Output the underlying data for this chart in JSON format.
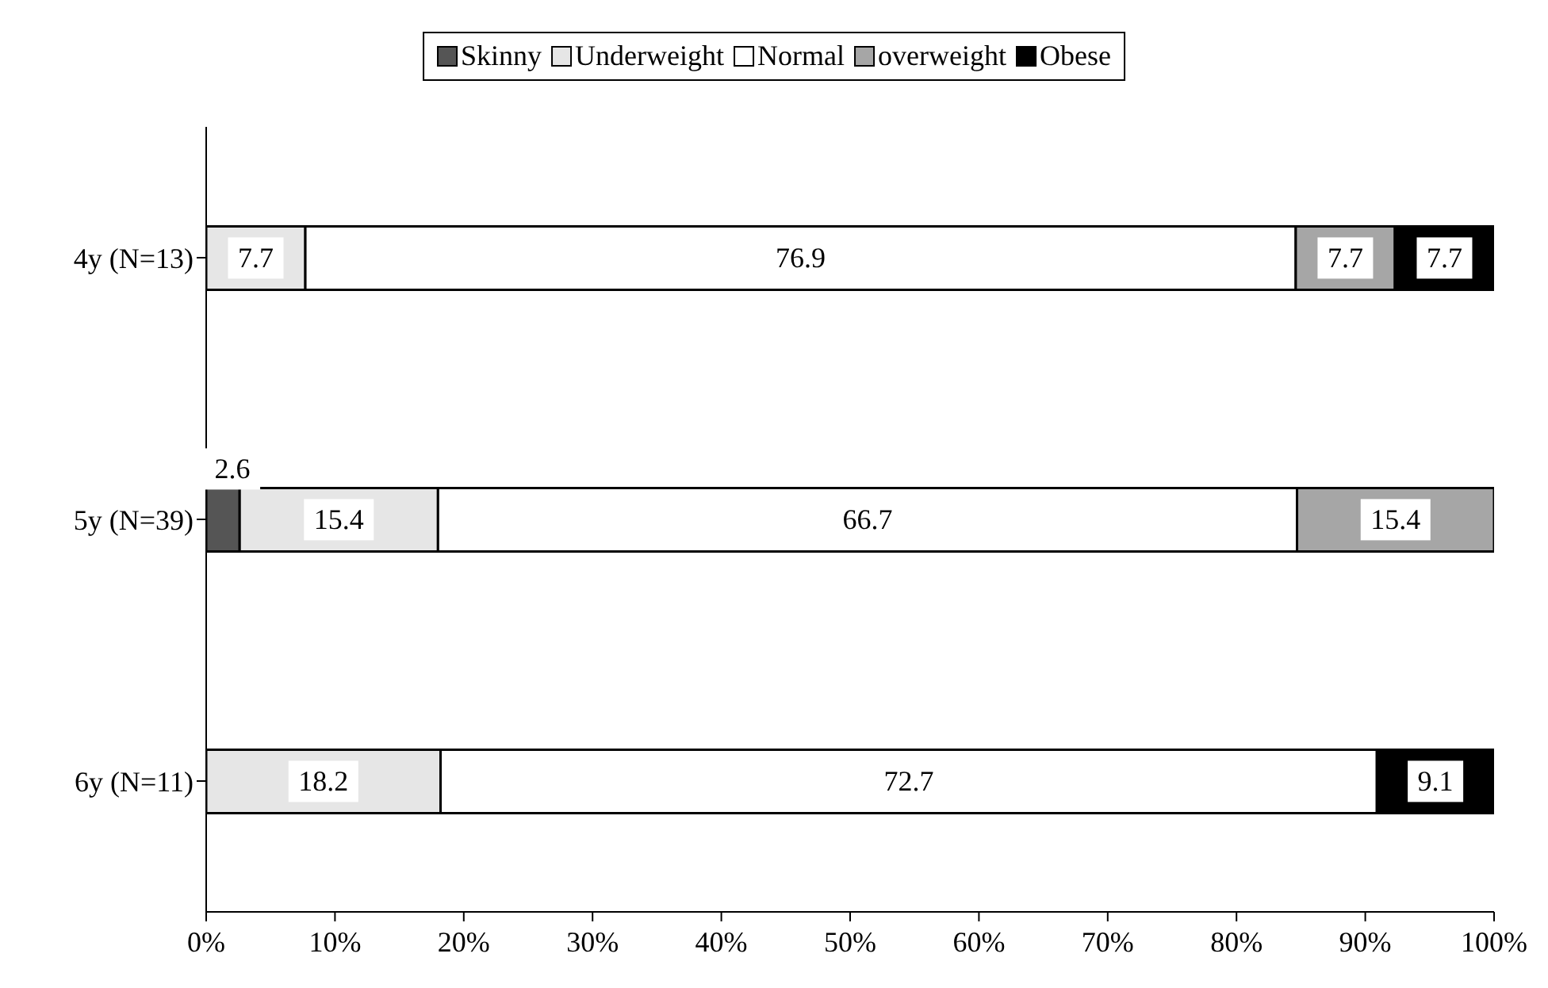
{
  "chart_data": {
    "type": "bar",
    "orientation": "horizontal",
    "stacked": true,
    "categories": [
      "4y (N=13)",
      "5y (N=39)",
      "6y (N=11)"
    ],
    "series": [
      {
        "name": "Skinny",
        "color": "#555555",
        "values": [
          null,
          2.6,
          null
        ]
      },
      {
        "name": "Underweight",
        "color": "#e6e6e6",
        "values": [
          7.7,
          15.4,
          18.2
        ]
      },
      {
        "name": "Normal",
        "color": "#ffffff",
        "values": [
          76.9,
          66.7,
          72.7
        ]
      },
      {
        "name": "overweight",
        "color": "#a6a6a6",
        "values": [
          7.7,
          15.4,
          null
        ]
      },
      {
        "name": "Obese",
        "color": "#000000",
        "values": [
          7.7,
          null,
          9.1
        ]
      }
    ],
    "xlim": [
      0,
      100
    ],
    "xticks": [
      {
        "value": 0,
        "label": "0%"
      },
      {
        "value": 10,
        "label": "10%"
      },
      {
        "value": 20,
        "label": "20%"
      },
      {
        "value": 30,
        "label": "30%"
      },
      {
        "value": 40,
        "label": "40%"
      },
      {
        "value": 50,
        "label": "50%"
      },
      {
        "value": 60,
        "label": "60%"
      },
      {
        "value": 70,
        "label": "70%"
      },
      {
        "value": 80,
        "label": "80%"
      },
      {
        "value": 90,
        "label": "90%"
      },
      {
        "value": 100,
        "label": "100%"
      }
    ],
    "data_labels": true,
    "legend": "top",
    "grid": false
  }
}
